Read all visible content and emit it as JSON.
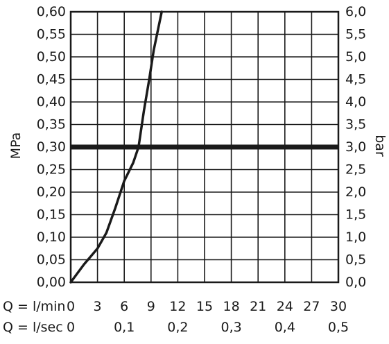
{
  "chart_data": {
    "type": "line",
    "title": "",
    "left_axis": {
      "label": "MPa",
      "ticks": [
        "0,00",
        "0,05",
        "0,10",
        "0,15",
        "0,20",
        "0,25",
        "0,30",
        "0,35",
        "0,40",
        "0,45",
        "0,50",
        "0,55",
        "0,60"
      ],
      "range": [
        0,
        0.6
      ],
      "step": 0.05
    },
    "right_axis": {
      "label": "bar",
      "ticks": [
        "0,0",
        "0,5",
        "1,0",
        "1,5",
        "2,0",
        "2,5",
        "3,0",
        "3,5",
        "4,0",
        "4,5",
        "5,0",
        "5,5",
        "6,0"
      ],
      "range": [
        0,
        6
      ]
    },
    "x_axis_lmin": {
      "label": "Q = l/min",
      "ticks": [
        "0",
        "3",
        "6",
        "9",
        "12",
        "15",
        "18",
        "21",
        "24",
        "27",
        "30"
      ],
      "range": [
        0,
        30
      ]
    },
    "x_axis_lsec": {
      "label": "Q = l/sec",
      "ticks": [
        "0",
        "0,1",
        "0,2",
        "0,3",
        "0,4",
        "0,5"
      ],
      "values": [
        0,
        0.1,
        0.2,
        0.3,
        0.4,
        0.5
      ]
    },
    "grid": true,
    "series": [
      {
        "x": [
          0,
          1.5,
          3,
          4,
          5,
          6,
          7,
          7.6,
          8.2,
          8.8,
          9.3,
          10.2
        ],
        "y": [
          0,
          0.04,
          0.075,
          0.11,
          0.165,
          0.225,
          0.265,
          0.3,
          0.38,
          0.45,
          0.515,
          0.6
        ]
      },
      {
        "x": [
          0,
          30
        ],
        "y": [
          0.3,
          0.3
        ]
      }
    ]
  }
}
